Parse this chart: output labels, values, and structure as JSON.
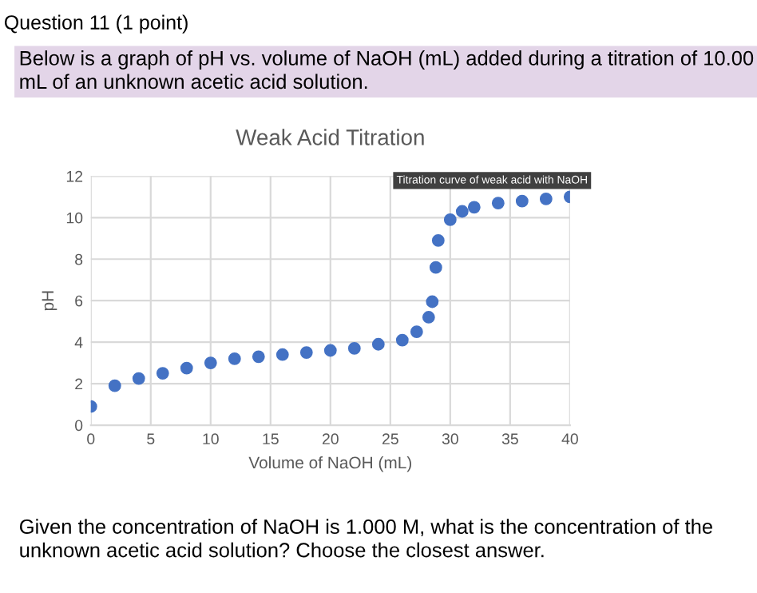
{
  "chart_data": {
    "type": "scatter",
    "title": "Weak Acid Titration",
    "xlabel": "Volume of NaOH (mL)",
    "ylabel": "pH",
    "x": [
      0,
      2,
      4,
      6,
      8,
      10,
      12,
      14,
      16,
      18,
      20,
      22,
      24,
      26,
      27.2,
      28.2,
      28.5,
      28.8,
      29,
      30,
      31,
      32,
      34,
      36,
      38,
      40
    ],
    "series": [
      {
        "color": "#4472c4",
        "values": [
          0.9,
          1.9,
          2.25,
          2.5,
          2.75,
          3.0,
          3.2,
          3.3,
          3.4,
          3.5,
          3.6,
          3.7,
          3.9,
          4.1,
          4.5,
          5.2,
          5.95,
          7.6,
          8.9,
          9.9,
          10.3,
          10.5,
          10.7,
          10.8,
          10.9,
          11.0
        ]
      }
    ],
    "xlim": [
      0,
      40
    ],
    "xticks": [
      0,
      5,
      10,
      15,
      20,
      25,
      30,
      35,
      40
    ],
    "ylim": [
      0,
      12
    ],
    "yticks": [
      0,
      2,
      4,
      6,
      8,
      10,
      12
    ],
    "grid": true,
    "marker": "circle",
    "annotations": [
      "Question 11 (1 point)",
      "Below is a graph of pH vs. volume of NaOH (mL) added during a titration of 10.00 mL of an unknown acetic acid solution.",
      "Given the concentration of NaOH is 1.000 M, what is the concentration of the unknown acetic acid solution? Choose the closest answer.",
      {
        "text": "Titration curve of weak acid with NaOH",
        "x": 40,
        "y": 11.0
      }
    ]
  }
}
